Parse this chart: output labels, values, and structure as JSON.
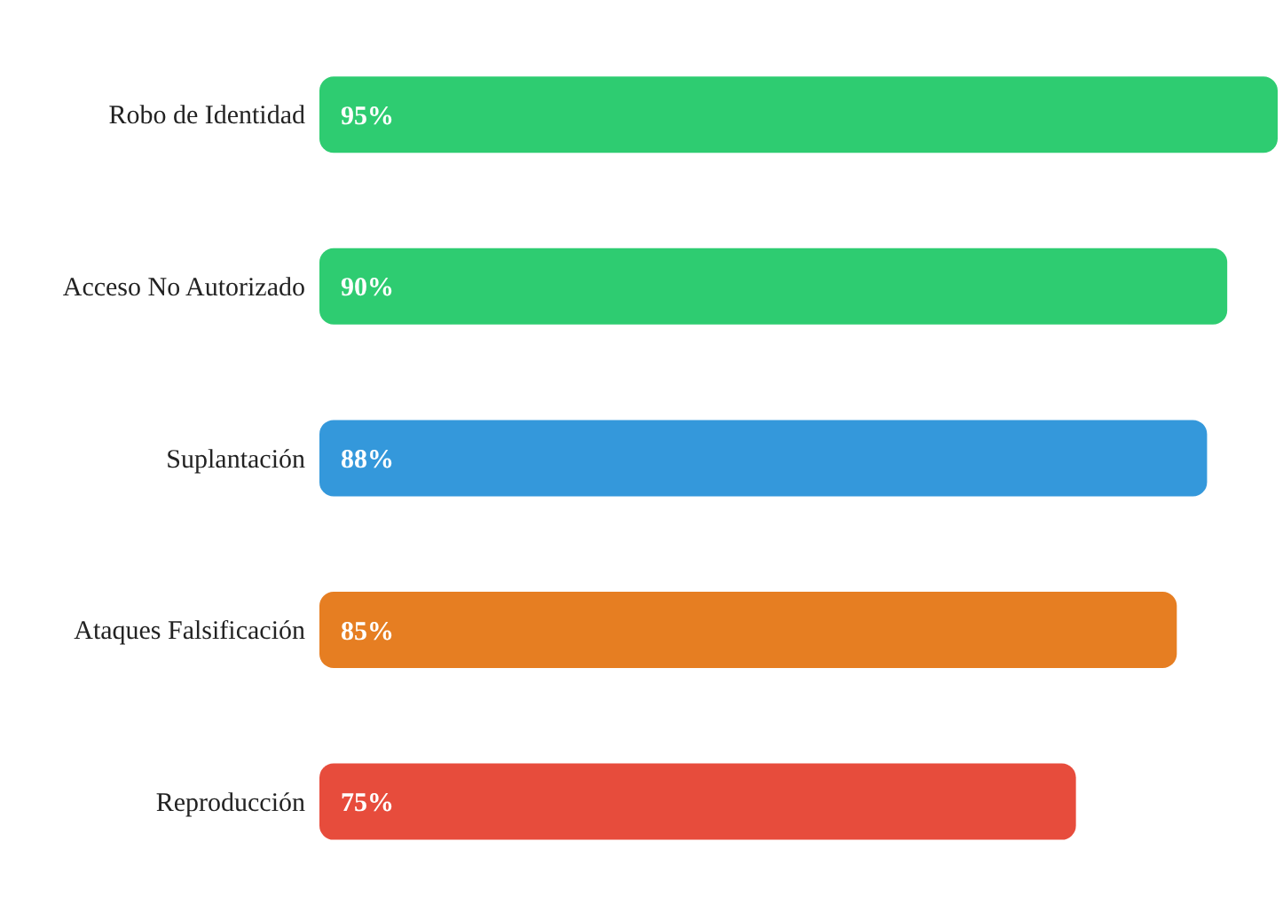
{
  "chart_data": {
    "type": "bar",
    "orientation": "horizontal",
    "categories": [
      "Robo de Identidad",
      "Acceso No Autorizado",
      "Suplantación",
      "Ataques Falsificación",
      "Reproducción"
    ],
    "values": [
      95,
      90,
      88,
      85,
      75
    ],
    "value_labels": [
      "95%",
      "90%",
      "88%",
      "85%",
      "75%"
    ],
    "colors": [
      "#2ecc71",
      "#2ecc71",
      "#3498db",
      "#e67e22",
      "#e74c3c"
    ],
    "grid": false,
    "legend": false
  }
}
